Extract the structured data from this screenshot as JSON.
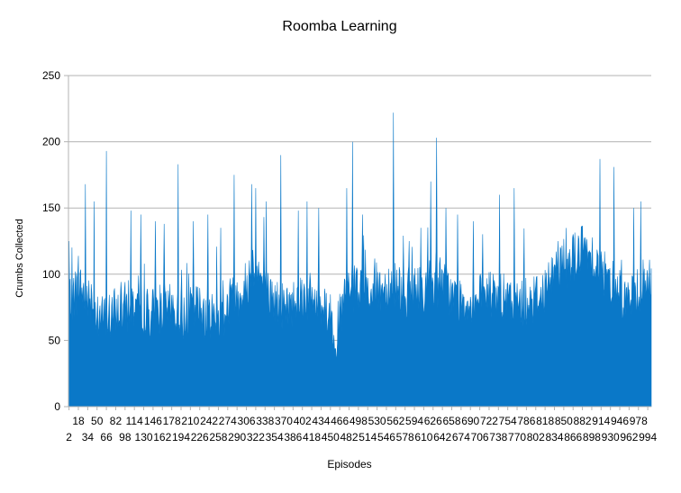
{
  "chart_data": {
    "type": "area",
    "title": "Roomba Learning",
    "xlabel": "Episodes",
    "ylabel": "Crumbs Collected",
    "ylim": [
      0,
      250
    ],
    "yticks": [
      0,
      50,
      100,
      150,
      200,
      250
    ],
    "xlim": [
      1,
      1000
    ],
    "xticks": [
      2,
      18,
      34,
      50,
      66,
      82,
      98,
      114,
      130,
      146,
      162,
      178,
      194,
      210,
      226,
      242,
      258,
      274,
      290,
      306,
      322,
      338,
      354,
      370,
      386,
      402,
      418,
      434,
      450,
      466,
      482,
      498,
      514,
      530,
      546,
      562,
      578,
      594,
      610,
      626,
      642,
      658,
      674,
      690,
      706,
      722,
      738,
      754,
      770,
      786,
      802,
      818,
      834,
      850,
      866,
      882,
      898,
      914,
      930,
      946,
      962,
      978,
      994
    ],
    "grid": "horizontal",
    "legend": "none",
    "series_color": "#0a78c8",
    "baseline_profile": {
      "x": [
        1,
        20,
        40,
        60,
        80,
        100,
        120,
        140,
        160,
        180,
        200,
        220,
        240,
        260,
        280,
        300,
        320,
        340,
        360,
        380,
        400,
        420,
        440,
        460,
        480,
        500,
        520,
        540,
        560,
        580,
        600,
        620,
        640,
        660,
        680,
        700,
        720,
        740,
        760,
        780,
        800,
        820,
        840,
        860,
        880,
        900,
        920,
        940,
        960,
        980,
        1000
      ],
      "y": [
        80,
        90,
        75,
        65,
        70,
        75,
        80,
        70,
        75,
        72,
        68,
        75,
        70,
        68,
        80,
        85,
        110,
        85,
        78,
        75,
        85,
        80,
        78,
        55,
        90,
        85,
        88,
        90,
        95,
        85,
        88,
        92,
        95,
        82,
        80,
        78,
        85,
        82,
        78,
        80,
        82,
        90,
        105,
        110,
        118,
        115,
        95,
        92,
        80,
        90,
        95
      ]
    },
    "peaks": [
      {
        "x": 2,
        "y": 125
      },
      {
        "x": 30,
        "y": 168
      },
      {
        "x": 45,
        "y": 155
      },
      {
        "x": 66,
        "y": 193
      },
      {
        "x": 108,
        "y": 148
      },
      {
        "x": 125,
        "y": 145
      },
      {
        "x": 150,
        "y": 140
      },
      {
        "x": 165,
        "y": 138
      },
      {
        "x": 189,
        "y": 183
      },
      {
        "x": 215,
        "y": 140
      },
      {
        "x": 240,
        "y": 145
      },
      {
        "x": 262,
        "y": 135
      },
      {
        "x": 285,
        "y": 175
      },
      {
        "x": 315,
        "y": 168
      },
      {
        "x": 322,
        "y": 165
      },
      {
        "x": 340,
        "y": 155
      },
      {
        "x": 365,
        "y": 190
      },
      {
        "x": 395,
        "y": 148
      },
      {
        "x": 410,
        "y": 155
      },
      {
        "x": 430,
        "y": 150
      },
      {
        "x": 478,
        "y": 165
      },
      {
        "x": 488,
        "y": 200
      },
      {
        "x": 505,
        "y": 145
      },
      {
        "x": 558,
        "y": 222
      },
      {
        "x": 585,
        "y": 125
      },
      {
        "x": 605,
        "y": 135
      },
      {
        "x": 622,
        "y": 170
      },
      {
        "x": 632,
        "y": 203
      },
      {
        "x": 648,
        "y": 150
      },
      {
        "x": 668,
        "y": 145
      },
      {
        "x": 695,
        "y": 140
      },
      {
        "x": 740,
        "y": 160
      },
      {
        "x": 765,
        "y": 165
      },
      {
        "x": 840,
        "y": 125
      },
      {
        "x": 880,
        "y": 136
      },
      {
        "x": 912,
        "y": 187
      },
      {
        "x": 936,
        "y": 181
      },
      {
        "x": 970,
        "y": 150
      },
      {
        "x": 982,
        "y": 155
      }
    ]
  }
}
